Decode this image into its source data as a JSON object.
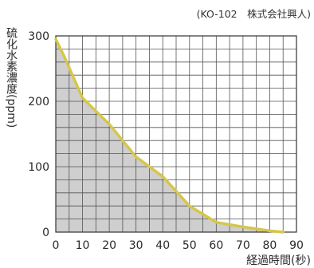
{
  "source_label": "(KO-102　株式会社興人)",
  "chart_data": {
    "type": "area",
    "ylabel": "硫化水素濃度(ppm)",
    "xlabel": "経過時間(秒)",
    "xlim": [
      0,
      90
    ],
    "ylim": [
      0,
      300
    ],
    "x_ticks": [
      0,
      10,
      20,
      30,
      40,
      50,
      60,
      70,
      80,
      90
    ],
    "y_ticks": [
      0,
      100,
      200,
      300
    ],
    "x_minor_step": 5,
    "y_minor_step": 20,
    "grid": true,
    "series": [
      {
        "x": [
          0,
          3,
          10,
          20,
          30,
          40,
          50,
          60,
          70,
          80,
          85
        ],
        "y": [
          295,
          270,
          205,
          165,
          115,
          85,
          40,
          15,
          8,
          2,
          0
        ]
      }
    ],
    "colors": {
      "line": "#d6c64a",
      "fill": "#cfcfcf",
      "grid": "#555555",
      "axis": "#333333"
    }
  }
}
